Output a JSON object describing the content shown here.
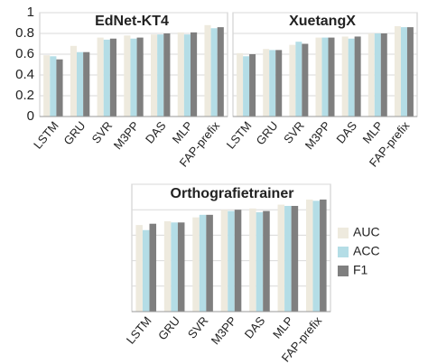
{
  "chart_data": [
    {
      "type": "bar",
      "title": "EdNet-KT4",
      "categories": [
        "LSTM",
        "GRU",
        "SVR",
        "M3PP",
        "DAS",
        "MLP",
        "FAP-prefix"
      ],
      "series": [
        {
          "color": "#eeeade",
          "values": [
            0.59,
            0.68,
            0.76,
            0.78,
            0.79,
            0.81,
            0.88
          ]
        },
        {
          "color": "#b4dde6",
          "values": [
            0.58,
            0.62,
            0.74,
            0.75,
            0.79,
            0.79,
            0.85
          ]
        },
        {
          "color": "#7f7f7f",
          "values": [
            0.55,
            0.62,
            0.75,
            0.76,
            0.8,
            0.81,
            0.86
          ]
        }
      ],
      "ylim": [
        0,
        1
      ],
      "yticks": [
        0,
        0.2,
        0.4,
        0.6,
        0.8,
        1
      ],
      "ytick_labels": true,
      "grid": true
    },
    {
      "type": "bar",
      "title": "XuetangX",
      "categories": [
        "LSTM",
        "GRU",
        "SVR",
        "M3PP",
        "DAS",
        "MLP",
        "FAP-prefix"
      ],
      "series": [
        {
          "color": "#eeeade",
          "values": [
            0.61,
            0.65,
            0.69,
            0.76,
            0.77,
            0.8,
            0.87
          ]
        },
        {
          "color": "#b4dde6",
          "values": [
            0.58,
            0.64,
            0.72,
            0.76,
            0.75,
            0.8,
            0.86
          ]
        },
        {
          "color": "#7f7f7f",
          "values": [
            0.6,
            0.64,
            0.7,
            0.76,
            0.77,
            0.8,
            0.86
          ]
        }
      ],
      "ylim": [
        0,
        1
      ],
      "yticks": [
        0,
        0.2,
        0.4,
        0.6,
        0.8,
        1
      ],
      "ytick_labels": false,
      "grid": true
    },
    {
      "type": "bar",
      "title": "Orthografietrainer",
      "categories": [
        "LSTM",
        "GRU",
        "SVR",
        "M3PP",
        "DAS",
        "MLP",
        "FAP-prefix"
      ],
      "series": [
        {
          "name": "AUC",
          "color": "#eeeade",
          "values": [
            0.68,
            0.71,
            0.74,
            0.8,
            0.81,
            0.84,
            0.88
          ]
        },
        {
          "name": "ACC",
          "color": "#b4dde6",
          "values": [
            0.64,
            0.7,
            0.76,
            0.79,
            0.78,
            0.83,
            0.87
          ]
        },
        {
          "name": "F1",
          "color": "#7f7f7f",
          "values": [
            0.69,
            0.7,
            0.76,
            0.8,
            0.79,
            0.83,
            0.88
          ]
        }
      ],
      "ylim": [
        0,
        1
      ],
      "yticks": [
        0,
        0.2,
        0.4,
        0.6,
        0.8,
        1
      ],
      "ytick_labels": false,
      "grid": true,
      "legend": "right"
    }
  ]
}
